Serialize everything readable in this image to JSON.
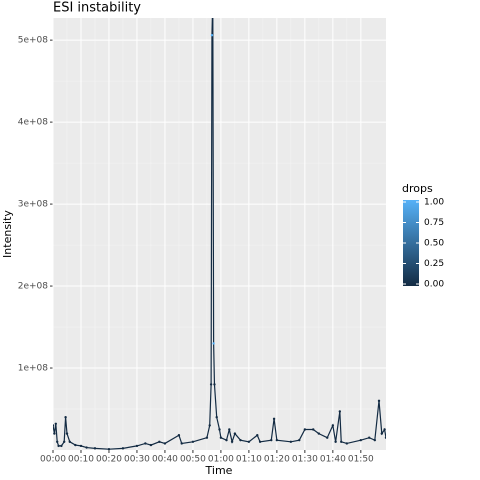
{
  "chart_data": {
    "type": "line",
    "title": "ESI instability",
    "x_label": "Time",
    "y_label": "Intensity",
    "x": [
      0,
      0.5,
      1,
      1.5,
      2,
      3,
      4,
      4.5,
      5,
      6,
      8,
      10,
      12,
      15,
      20,
      25,
      30,
      33,
      35,
      38,
      40,
      45,
      46,
      50,
      55,
      56,
      56.5,
      56.8,
      57.1,
      57.4,
      57.7,
      58.5,
      59.5,
      60,
      62,
      63,
      64,
      65,
      67,
      70,
      73,
      74,
      78,
      79,
      80,
      85,
      88,
      90,
      93,
      95,
      98,
      100,
      101,
      102.5,
      103,
      105,
      110,
      113,
      115,
      116.5,
      117.5,
      118.5,
      119
    ],
    "values": [
      30000000,
      20000000,
      32000000,
      10000000,
      5000000,
      5000000,
      10000000,
      40000000,
      20000000,
      10000000,
      6000000,
      5000000,
      3000000,
      2000000,
      1000000,
      2000000,
      5000000,
      8000000,
      6000000,
      10000000,
      8000000,
      18000000,
      8000000,
      10000000,
      15000000,
      30000000,
      80000000,
      506000000,
      550000000,
      130000000,
      80000000,
      40000000,
      25000000,
      15000000,
      12000000,
      25000000,
      10000000,
      20000000,
      12000000,
      10000000,
      18000000,
      10000000,
      12000000,
      38000000,
      12000000,
      10000000,
      12000000,
      25000000,
      25000000,
      20000000,
      15000000,
      30000000,
      10000000,
      47000000,
      10000000,
      8000000,
      12000000,
      15000000,
      12000000,
      60000000,
      20000000,
      25000000,
      15000000
    ],
    "drops": [
      0,
      0,
      0,
      0,
      0,
      0,
      0,
      0,
      0,
      0,
      0,
      0,
      0,
      0,
      0,
      0,
      0,
      0,
      0,
      0,
      0,
      0,
      0,
      0,
      0,
      0,
      0,
      1,
      0,
      1,
      0,
      0,
      0,
      0,
      0,
      0,
      0,
      0,
      0,
      0,
      0,
      0,
      0,
      0,
      0,
      0,
      0,
      0,
      0,
      0,
      0,
      0,
      0,
      0,
      0,
      0,
      0,
      0,
      0,
      0,
      0,
      0,
      0
    ],
    "xlim": [
      0,
      119
    ],
    "xticks": [
      {
        "value": 0,
        "label": "00:00"
      },
      {
        "value": 10,
        "label": "00:10"
      },
      {
        "value": 20,
        "label": "00:20"
      },
      {
        "value": 30,
        "label": "00:30"
      },
      {
        "value": 40,
        "label": "00:40"
      },
      {
        "value": 50,
        "label": "00:50"
      },
      {
        "value": 60,
        "label": "01:00"
      },
      {
        "value": 70,
        "label": "01:10"
      },
      {
        "value": 80,
        "label": "01:20"
      },
      {
        "value": 90,
        "label": "01:30"
      },
      {
        "value": 100,
        "label": "01:40"
      },
      {
        "value": 110,
        "label": "01:50"
      }
    ],
    "ylim": [
      0,
      527000000
    ],
    "yticks": [
      {
        "value": 100000000,
        "label": "1e+08"
      },
      {
        "value": 200000000,
        "label": "2e+08"
      },
      {
        "value": 300000000,
        "label": "3e+08"
      },
      {
        "value": 400000000,
        "label": "4e+08"
      },
      {
        "value": 500000000,
        "label": "5e+08"
      }
    ],
    "grid": true,
    "legend": {
      "title": "drops",
      "low_color": "#132B43",
      "high_color": "#56B1F7",
      "range": [
        0,
        1
      ],
      "ticks": [
        {
          "value": 1,
          "label": "1.00"
        },
        {
          "value": 0.75,
          "label": "0.75"
        },
        {
          "value": 0.5,
          "label": "0.50"
        },
        {
          "value": 0.25,
          "label": "0.25"
        },
        {
          "value": 0,
          "label": "0.00"
        }
      ]
    }
  }
}
